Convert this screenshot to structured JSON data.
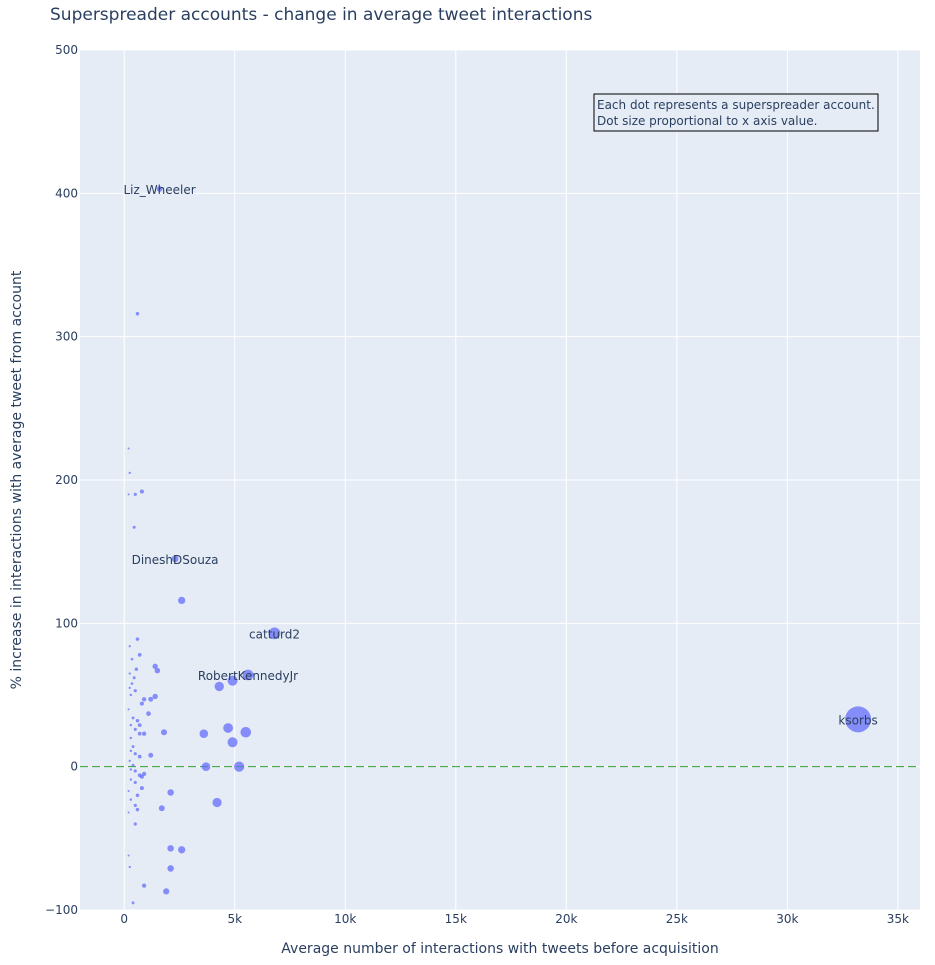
{
  "chart_data": {
    "type": "scatter",
    "title": "Superspreader accounts - change in average tweet interactions",
    "xlabel": "Average number of interactions with tweets before acquisition",
    "ylabel": "% increase in interactions with average tweet from account",
    "xlim": [
      -2000,
      36000
    ],
    "ylim": [
      -100,
      500
    ],
    "x_ticks": [
      0,
      5000,
      10000,
      15000,
      20000,
      25000,
      30000,
      35000
    ],
    "x_tick_labels": [
      "0",
      "5k",
      "10k",
      "15k",
      "20k",
      "25k",
      "30k",
      "35k"
    ],
    "y_ticks": [
      -100,
      0,
      100,
      200,
      300,
      400,
      500
    ],
    "y_tick_labels": [
      "−100",
      "0",
      "100",
      "200",
      "300",
      "400",
      "500"
    ],
    "grid": true,
    "reference_line": {
      "y": 0,
      "style": "dashed",
      "color": "#2ca02c"
    },
    "annotation": [
      "Each dot represents a superspreader account.",
      "Dot size proportional to x axis value."
    ],
    "marker_color": "#636efa",
    "points": [
      {
        "label": "Liz_Wheeler",
        "x": 1600,
        "y": 403
      },
      {
        "label": "",
        "x": 600,
        "y": 316
      },
      {
        "label": "",
        "x": 200,
        "y": 222
      },
      {
        "label": "",
        "x": 250,
        "y": 205
      },
      {
        "label": "",
        "x": 800,
        "y": 192
      },
      {
        "label": "",
        "x": 500,
        "y": 190
      },
      {
        "label": "",
        "x": 200,
        "y": 190
      },
      {
        "label": "",
        "x": 450,
        "y": 167
      },
      {
        "label": "DineshDSouza",
        "x": 2300,
        "y": 145
      },
      {
        "label": "",
        "x": 2600,
        "y": 116
      },
      {
        "label": "catturd2",
        "x": 6800,
        "y": 93
      },
      {
        "label": "",
        "x": 600,
        "y": 89
      },
      {
        "label": "",
        "x": 250,
        "y": 84
      },
      {
        "label": "",
        "x": 700,
        "y": 78
      },
      {
        "label": "",
        "x": 350,
        "y": 75
      },
      {
        "label": "",
        "x": 1400,
        "y": 70
      },
      {
        "label": "",
        "x": 550,
        "y": 68
      },
      {
        "label": "",
        "x": 1500,
        "y": 67
      },
      {
        "label": "",
        "x": 250,
        "y": 65
      },
      {
        "label": "RobertKennedyJr",
        "x": 5600,
        "y": 64
      },
      {
        "label": "",
        "x": 450,
        "y": 62
      },
      {
        "label": "",
        "x": 4900,
        "y": 60
      },
      {
        "label": "",
        "x": 350,
        "y": 58
      },
      {
        "label": "",
        "x": 4300,
        "y": 56
      },
      {
        "label": "",
        "x": 250,
        "y": 55
      },
      {
        "label": "",
        "x": 500,
        "y": 53
      },
      {
        "label": "",
        "x": 300,
        "y": 50
      },
      {
        "label": "",
        "x": 1400,
        "y": 49
      },
      {
        "label": "",
        "x": 900,
        "y": 47
      },
      {
        "label": "",
        "x": 1200,
        "y": 47
      },
      {
        "label": "",
        "x": 800,
        "y": 44
      },
      {
        "label": "",
        "x": 200,
        "y": 40
      },
      {
        "label": "",
        "x": 1100,
        "y": 37
      },
      {
        "label": "",
        "x": 400,
        "y": 34
      },
      {
        "label": "",
        "x": 600,
        "y": 32
      },
      {
        "label": "ksorbs",
        "x": 33200,
        "y": 33
      },
      {
        "label": "",
        "x": 300,
        "y": 29
      },
      {
        "label": "",
        "x": 700,
        "y": 29
      },
      {
        "label": "",
        "x": 4700,
        "y": 27
      },
      {
        "label": "",
        "x": 500,
        "y": 26
      },
      {
        "label": "",
        "x": 1800,
        "y": 24
      },
      {
        "label": "",
        "x": 5500,
        "y": 24
      },
      {
        "label": "",
        "x": 700,
        "y": 23
      },
      {
        "label": "",
        "x": 900,
        "y": 23
      },
      {
        "label": "",
        "x": 3600,
        "y": 23
      },
      {
        "label": "",
        "x": 300,
        "y": 20
      },
      {
        "label": "",
        "x": 4900,
        "y": 17
      },
      {
        "label": "",
        "x": 400,
        "y": 14
      },
      {
        "label": "",
        "x": 300,
        "y": 11
      },
      {
        "label": "",
        "x": 500,
        "y": 9
      },
      {
        "label": "",
        "x": 1200,
        "y": 8
      },
      {
        "label": "",
        "x": 700,
        "y": 7
      },
      {
        "label": "",
        "x": 250,
        "y": 4
      },
      {
        "label": "",
        "x": 400,
        "y": 1
      },
      {
        "label": "",
        "x": 3700,
        "y": 0
      },
      {
        "label": "",
        "x": 5200,
        "y": 0
      },
      {
        "label": "",
        "x": 300,
        "y": -2
      },
      {
        "label": "",
        "x": 500,
        "y": -3
      },
      {
        "label": "",
        "x": 900,
        "y": -5
      },
      {
        "label": "",
        "x": 700,
        "y": -6
      },
      {
        "label": "",
        "x": 800,
        "y": -7
      },
      {
        "label": "",
        "x": 300,
        "y": -9
      },
      {
        "label": "",
        "x": 500,
        "y": -11
      },
      {
        "label": "",
        "x": 800,
        "y": -15
      },
      {
        "label": "",
        "x": 200,
        "y": -17
      },
      {
        "label": "",
        "x": 2100,
        "y": -18
      },
      {
        "label": "",
        "x": 600,
        "y": -20
      },
      {
        "label": "",
        "x": 300,
        "y": -23
      },
      {
        "label": "",
        "x": 4200,
        "y": -25
      },
      {
        "label": "",
        "x": 500,
        "y": -27
      },
      {
        "label": "",
        "x": 1700,
        "y": -29
      },
      {
        "label": "",
        "x": 600,
        "y": -30
      },
      {
        "label": "",
        "x": 200,
        "y": -32
      },
      {
        "label": "",
        "x": 500,
        "y": -40
      },
      {
        "label": "",
        "x": 2100,
        "y": -57
      },
      {
        "label": "",
        "x": 2600,
        "y": -58
      },
      {
        "label": "",
        "x": 200,
        "y": -62
      },
      {
        "label": "",
        "x": 250,
        "y": -70
      },
      {
        "label": "",
        "x": 2100,
        "y": -71
      },
      {
        "label": "",
        "x": 900,
        "y": -83
      },
      {
        "label": "",
        "x": 1900,
        "y": -87
      },
      {
        "label": "",
        "x": 400,
        "y": -95
      }
    ]
  }
}
